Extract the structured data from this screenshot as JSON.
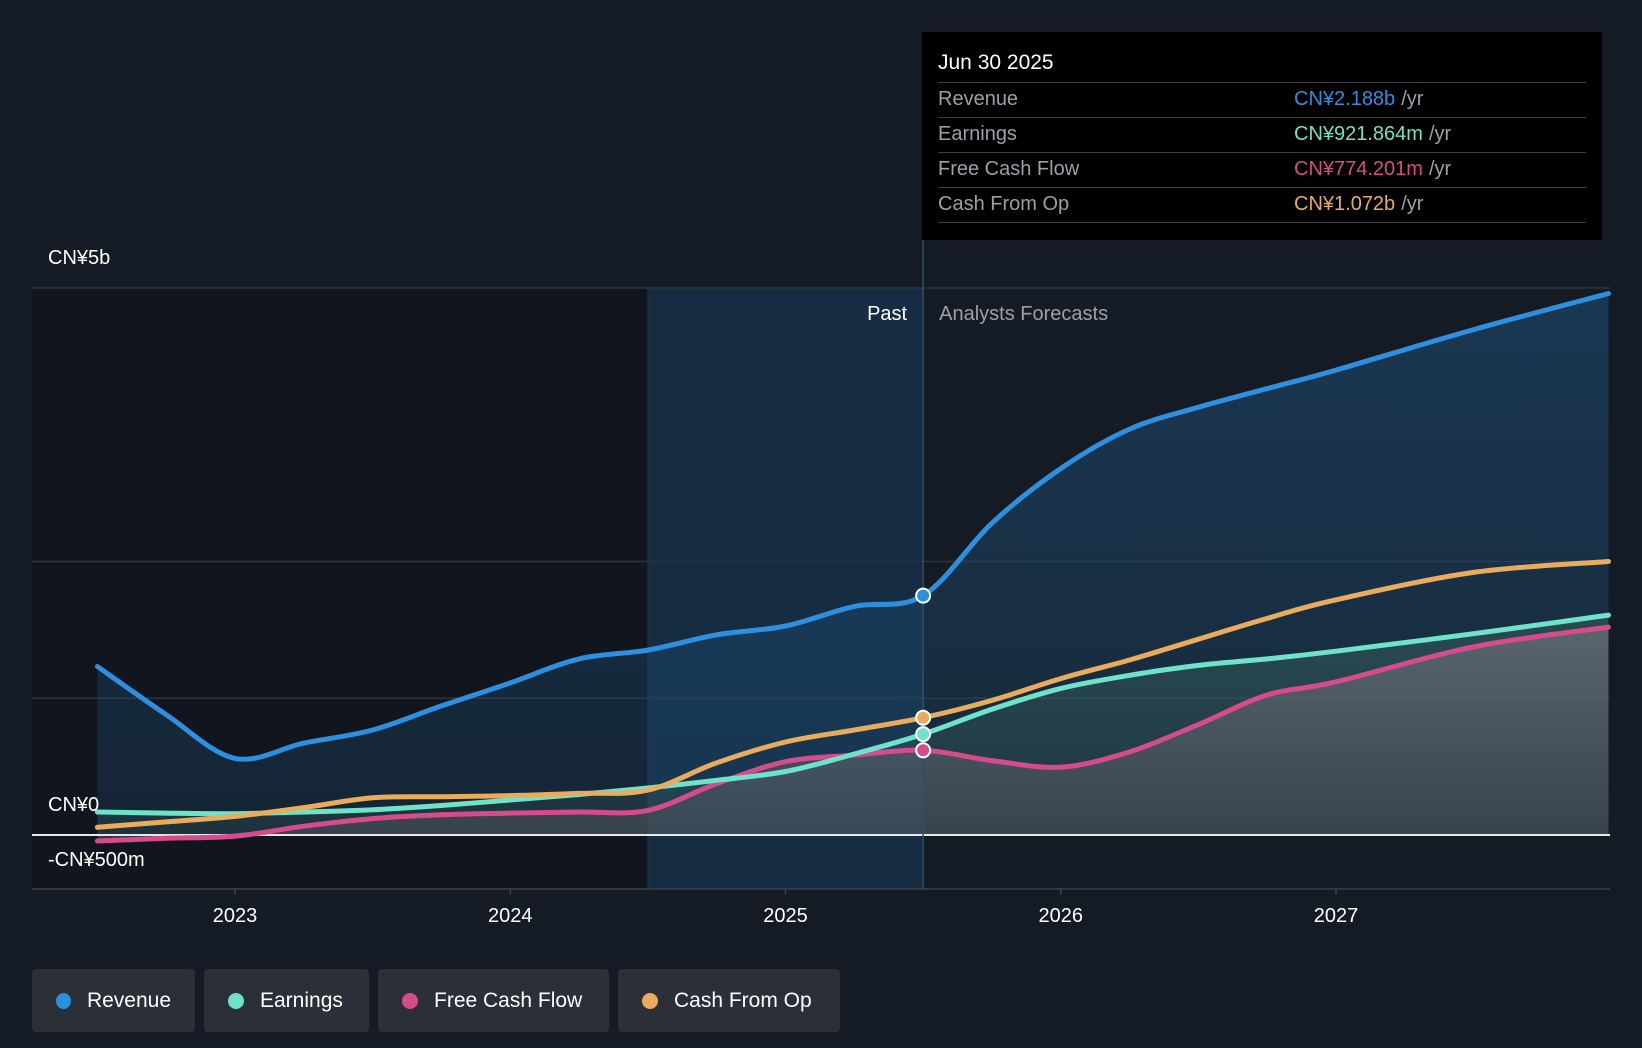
{
  "tooltip": {
    "date": "Jun 30 2025",
    "rows": [
      {
        "name": "Revenue",
        "value": "CN¥2.188b",
        "unit": "/yr",
        "color": "#2d8fe0"
      },
      {
        "name": "Earnings",
        "value": "CN¥921.864m",
        "unit": "/yr",
        "color": "#6fe3c9"
      },
      {
        "name": "Free Cash Flow",
        "value": "CN¥774.201m",
        "unit": "/yr",
        "color": "#d54b8b"
      },
      {
        "name": "Cash From Op",
        "value": "CN¥1.072b",
        "unit": "/yr",
        "color": "#e9ab5c"
      }
    ]
  },
  "legend": [
    {
      "label": "Revenue",
      "color": "#2d8fe0"
    },
    {
      "label": "Earnings",
      "color": "#6fe3c9"
    },
    {
      "label": "Free Cash Flow",
      "color": "#d54b8b"
    },
    {
      "label": "Cash From Op",
      "color": "#e9ab5c"
    }
  ],
  "chart_data": {
    "type": "line",
    "title": "",
    "xlabel": "",
    "ylabel": "",
    "x_ticks": [
      2023,
      2024,
      2025,
      2026,
      2027
    ],
    "y_tick_labels": [
      "CN¥5b",
      "CN¥0",
      "-CN¥500m"
    ],
    "y_ticks": [
      5000,
      0,
      -500
    ],
    "ylim": [
      -500,
      5000
    ],
    "xlim": [
      2022.26,
      2027.99
    ],
    "past_label": "Past",
    "forecast_label": "Analysts Forecasts",
    "divider_x": 2025.5,
    "past_shade_start": 2024.5,
    "series": [
      {
        "name": "Revenue",
        "color": "#2d8fe0",
        "points": [
          [
            2022.5,
            1540
          ],
          [
            2022.75,
            1100
          ],
          [
            2023.0,
            700
          ],
          [
            2023.25,
            840
          ],
          [
            2023.5,
            960
          ],
          [
            2023.75,
            1180
          ],
          [
            2024.0,
            1390
          ],
          [
            2024.25,
            1610
          ],
          [
            2024.5,
            1690
          ],
          [
            2024.75,
            1830
          ],
          [
            2025.0,
            1910
          ],
          [
            2025.25,
            2090
          ],
          [
            2025.5,
            2188
          ],
          [
            2025.75,
            2850
          ],
          [
            2026.0,
            3350
          ],
          [
            2026.25,
            3710
          ],
          [
            2026.5,
            3910
          ],
          [
            2026.75,
            4080
          ],
          [
            2027.0,
            4250
          ],
          [
            2027.5,
            4620
          ],
          [
            2027.99,
            4950
          ]
        ]
      },
      {
        "name": "Earnings",
        "color": "#6fe3c9",
        "points": [
          [
            2022.5,
            210
          ],
          [
            2022.75,
            200
          ],
          [
            2023.0,
            195
          ],
          [
            2023.25,
            210
          ],
          [
            2023.5,
            230
          ],
          [
            2023.75,
            270
          ],
          [
            2024.0,
            320
          ],
          [
            2024.25,
            370
          ],
          [
            2024.5,
            430
          ],
          [
            2024.75,
            500
          ],
          [
            2025.0,
            580
          ],
          [
            2025.25,
            740
          ],
          [
            2025.5,
            921.864
          ],
          [
            2025.75,
            1150
          ],
          [
            2026.0,
            1340
          ],
          [
            2026.25,
            1460
          ],
          [
            2026.5,
            1550
          ],
          [
            2026.75,
            1610
          ],
          [
            2027.0,
            1680
          ],
          [
            2027.5,
            1840
          ],
          [
            2027.99,
            2010
          ]
        ]
      },
      {
        "name": "Free Cash Flow",
        "color": "#d54b8b",
        "points": [
          [
            2022.5,
            -55
          ],
          [
            2022.75,
            -30
          ],
          [
            2023.0,
            -10
          ],
          [
            2023.25,
            80
          ],
          [
            2023.5,
            150
          ],
          [
            2023.75,
            185
          ],
          [
            2024.0,
            200
          ],
          [
            2024.25,
            210
          ],
          [
            2024.5,
            225
          ],
          [
            2024.75,
            470
          ],
          [
            2025.0,
            670
          ],
          [
            2025.25,
            730
          ],
          [
            2025.5,
            774.201
          ],
          [
            2025.75,
            680
          ],
          [
            2026.0,
            620
          ],
          [
            2026.25,
            760
          ],
          [
            2026.5,
            1010
          ],
          [
            2026.75,
            1280
          ],
          [
            2027.0,
            1400
          ],
          [
            2027.5,
            1720
          ],
          [
            2027.99,
            1900
          ]
        ]
      },
      {
        "name": "Cash From Op",
        "color": "#e9ab5c",
        "points": [
          [
            2022.5,
            70
          ],
          [
            2022.75,
            120
          ],
          [
            2023.0,
            170
          ],
          [
            2023.25,
            250
          ],
          [
            2023.5,
            340
          ],
          [
            2023.75,
            350
          ],
          [
            2024.0,
            360
          ],
          [
            2024.25,
            380
          ],
          [
            2024.5,
            410
          ],
          [
            2024.75,
            660
          ],
          [
            2025.0,
            850
          ],
          [
            2025.25,
            960
          ],
          [
            2025.5,
            1072
          ],
          [
            2025.75,
            1230
          ],
          [
            2026.0,
            1430
          ],
          [
            2026.25,
            1600
          ],
          [
            2026.5,
            1790
          ],
          [
            2026.75,
            1980
          ],
          [
            2027.0,
            2150
          ],
          [
            2027.5,
            2400
          ],
          [
            2027.99,
            2500
          ]
        ]
      }
    ]
  }
}
